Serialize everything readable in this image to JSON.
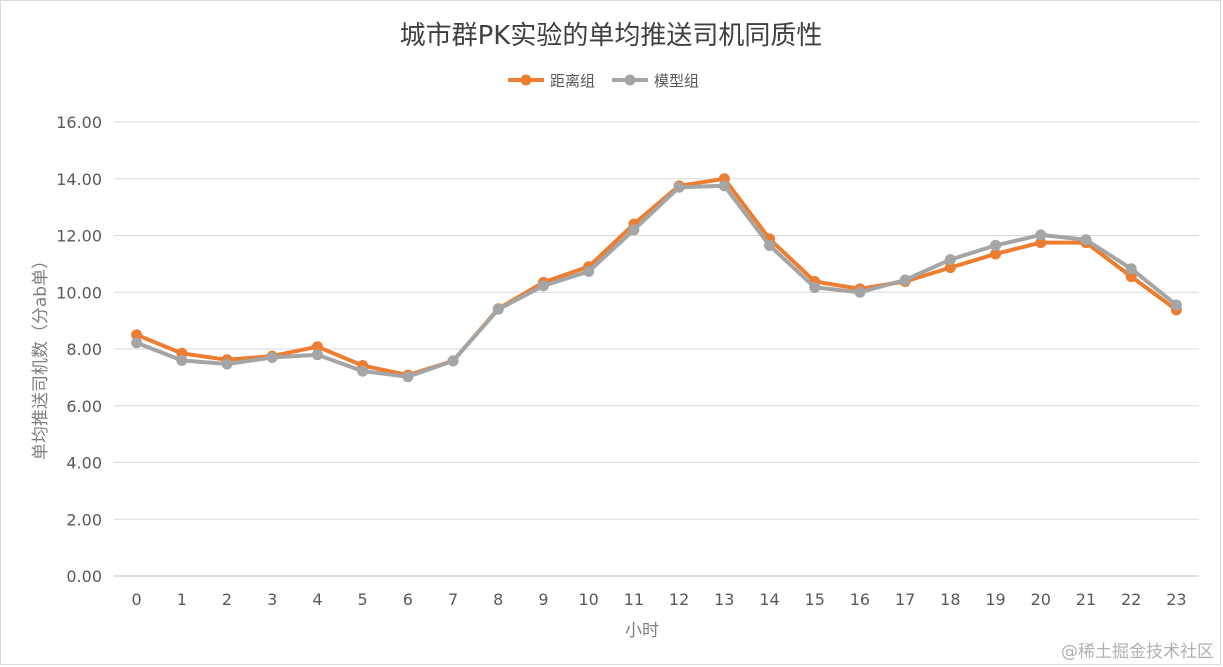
{
  "chart_data": {
    "type": "line",
    "title": "城市群PK实验的单均推送司机同质性",
    "xlabel": "小时",
    "ylabel": "单均推送司机数（分ab单）",
    "categories": [
      "0",
      "1",
      "2",
      "3",
      "4",
      "5",
      "6",
      "7",
      "8",
      "9",
      "10",
      "11",
      "12",
      "13",
      "14",
      "15",
      "16",
      "17",
      "18",
      "19",
      "20",
      "21",
      "22",
      "23"
    ],
    "series": [
      {
        "name": "距离组",
        "color": "#ED7D31",
        "values": [
          8.5,
          7.85,
          7.62,
          7.75,
          8.08,
          7.42,
          7.08,
          7.58,
          9.42,
          10.35,
          10.9,
          12.4,
          13.75,
          14.0,
          11.88,
          10.38,
          10.12,
          10.38,
          10.87,
          11.35,
          11.75,
          11.75,
          10.55,
          9.38
        ]
      },
      {
        "name": "模型组",
        "color": "#A5A5A5",
        "values": [
          8.22,
          7.6,
          7.47,
          7.7,
          7.8,
          7.22,
          7.02,
          7.58,
          9.4,
          10.23,
          10.73,
          12.2,
          13.7,
          13.75,
          11.65,
          10.17,
          10.0,
          10.43,
          11.15,
          11.65,
          12.02,
          11.85,
          10.83,
          9.55
        ]
      }
    ],
    "ylim": [
      0,
      16
    ],
    "yticks": [
      "0.00",
      "2.00",
      "4.00",
      "6.00",
      "8.00",
      "10.00",
      "12.00",
      "14.00",
      "16.00"
    ],
    "grid": true,
    "legend_position": "top-center"
  },
  "watermark": "@稀土掘金技术社区"
}
